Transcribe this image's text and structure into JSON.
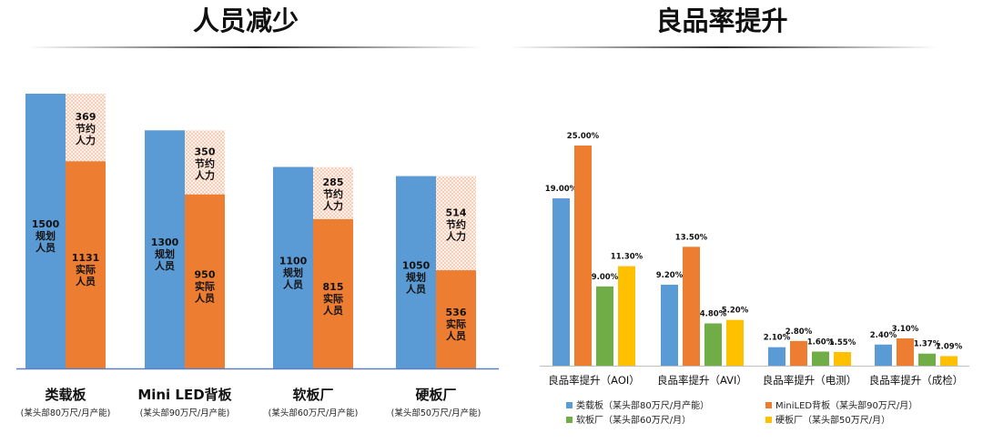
{
  "left_panel": {
    "title": "人员减少"
  },
  "right_panel": {
    "title": "良品率提升"
  },
  "chart_data": [
    {
      "type": "bar",
      "title": "人员减少",
      "categories": [
        "类载板",
        "Mini LED背板",
        "软板厂",
        "硬板厂"
      ],
      "category_notes": [
        "(某头部80万尺/月产能)",
        "(某头部90万尺/月产能)",
        "(某头部60万尺/月产能)",
        "(某头部50万尺/月产能)"
      ],
      "series": [
        {
          "name": "规划人员",
          "values": [
            1500,
            1300,
            1100,
            1050
          ],
          "color": "#5b9bd5"
        },
        {
          "name": "实际人员",
          "values": [
            1131,
            950,
            815,
            536
          ],
          "color": "#ed7d31"
        },
        {
          "name": "节约人力",
          "values": [
            369,
            350,
            285,
            514
          ],
          "color": "#f6c9b3"
        }
      ],
      "bar_label_lines": {
        "规划人员": [
          "规划",
          "人员"
        ],
        "实际人员": [
          "实际",
          "人员"
        ],
        "节约人力": [
          "节约",
          "人力"
        ]
      },
      "ylim": [
        0,
        1650
      ],
      "grid": false,
      "legend": "none"
    },
    {
      "type": "bar",
      "title": "良品率提升",
      "categories": [
        "良品率提升（AOI）",
        "良品率提升（AVI）",
        "良品率提升（电测）",
        "良品率提升（成检）"
      ],
      "series": [
        {
          "name": "类载板（某头部80万尺/月产能）",
          "values": [
            19.0,
            9.2,
            2.1,
            2.4
          ],
          "color": "#5b9bd5"
        },
        {
          "name": "MiniLED背板（某头部90万尺/月）",
          "values": [
            25.0,
            13.5,
            2.8,
            3.1
          ],
          "color": "#ed7d31"
        },
        {
          "name": "软板厂（某头部60万尺/月）",
          "values": [
            9.0,
            4.8,
            1.6,
            1.37
          ],
          "color": "#70ad47"
        },
        {
          "name": "硬板厂（某头部50万尺/月）",
          "values": [
            11.3,
            5.2,
            1.55,
            1.09
          ],
          "color": "#ffc000"
        }
      ],
      "value_format": "percent_2dp",
      "ylim": [
        0,
        27
      ],
      "grid": false,
      "legend": "bottom"
    }
  ]
}
